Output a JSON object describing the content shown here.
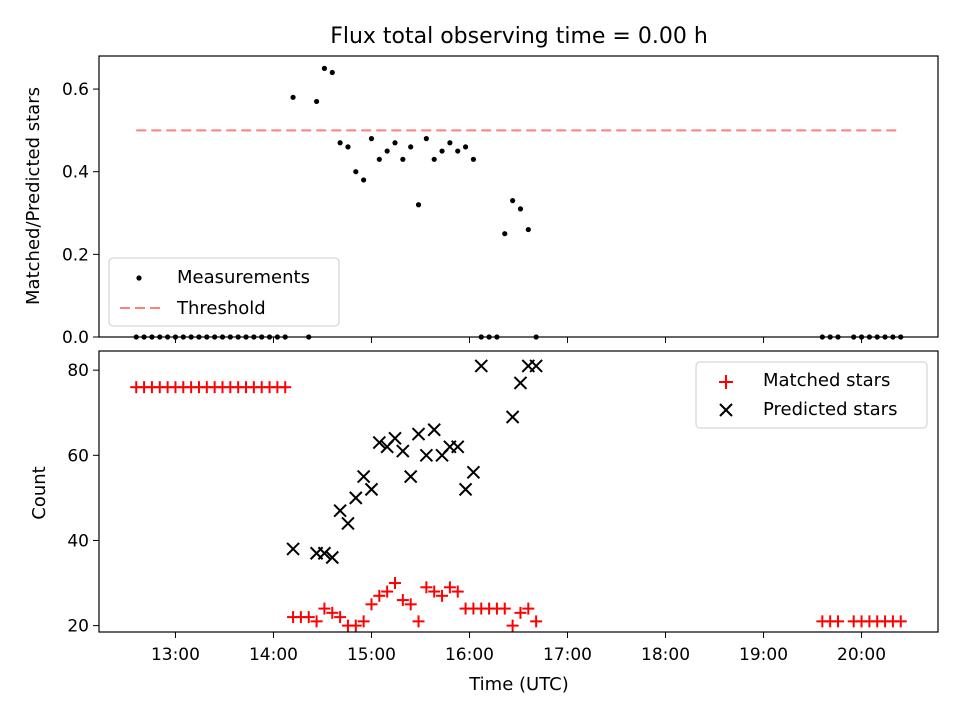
{
  "title": "Flux total observing time = 0.00 h",
  "colors": {
    "measurement": "#000000",
    "threshold": "#ff7f7f",
    "matched": "#ff0000",
    "predicted": "#000000"
  },
  "chart_data": [
    {
      "type": "scatter",
      "ylabel": "Matched/Predicted stars",
      "xlim": [
        12.22,
        20.78
      ],
      "ylim": [
        0.0,
        0.68
      ],
      "yticks": [
        "0.0",
        "0.2",
        "0.4",
        "0.6"
      ],
      "ytick_values": [
        0.0,
        0.2,
        0.4,
        0.6
      ],
      "legend": {
        "position": "lower-left",
        "entries": [
          "Measurements",
          "Threshold"
        ]
      },
      "threshold": {
        "name": "Threshold",
        "value": 0.5,
        "x_range": [
          12.6,
          20.4
        ]
      },
      "series": [
        {
          "name": "Measurements",
          "x": [
            12.6,
            12.68,
            12.76,
            12.84,
            12.92,
            13.0,
            13.08,
            13.16,
            13.24,
            13.32,
            13.4,
            13.48,
            13.56,
            13.64,
            13.72,
            13.8,
            13.88,
            13.96,
            14.04,
            14.12,
            14.2,
            14.36,
            14.44,
            14.52,
            14.6,
            14.68,
            14.76,
            14.84,
            14.92,
            15.0,
            15.08,
            15.16,
            15.24,
            15.32,
            15.4,
            15.48,
            15.56,
            15.64,
            15.72,
            15.8,
            15.88,
            15.96,
            16.04,
            16.12,
            16.2,
            16.28,
            16.36,
            16.44,
            16.52,
            16.6,
            16.68,
            19.6,
            19.68,
            19.76,
            19.92,
            20.0,
            20.08,
            20.16,
            20.24,
            20.32,
            20.4
          ],
          "y": [
            0,
            0,
            0,
            0,
            0,
            0,
            0,
            0,
            0,
            0,
            0,
            0,
            0,
            0,
            0,
            0,
            0,
            0,
            0,
            0,
            0.58,
            0,
            0.57,
            0.65,
            0.64,
            0.47,
            0.46,
            0.4,
            0.38,
            0.48,
            0.43,
            0.45,
            0.47,
            0.43,
            0.46,
            0.32,
            0.48,
            0.43,
            0.45,
            0.47,
            0.45,
            0.46,
            0.43,
            0,
            0,
            0,
            0.25,
            0.33,
            0.31,
            0.26,
            0,
            0,
            0,
            0,
            0,
            0,
            0,
            0,
            0,
            0,
            0
          ]
        }
      ]
    },
    {
      "type": "scatter",
      "xlabel": "Time (UTC)",
      "ylabel": "Count",
      "xlim": [
        12.22,
        20.78
      ],
      "ylim": [
        18.5,
        84.5
      ],
      "yticks": [
        "20",
        "40",
        "60",
        "80"
      ],
      "ytick_values": [
        20,
        40,
        60,
        80
      ],
      "xticks": [
        "13:00",
        "14:00",
        "15:00",
        "16:00",
        "17:00",
        "18:00",
        "19:00",
        "20:00"
      ],
      "xtick_values": [
        13,
        14,
        15,
        16,
        17,
        18,
        19,
        20
      ],
      "legend": {
        "position": "top-right",
        "entries": [
          "Matched stars",
          "Predicted stars"
        ]
      },
      "series": [
        {
          "name": "Matched stars",
          "x": [
            12.6,
            12.68,
            12.76,
            12.84,
            12.92,
            13.0,
            13.08,
            13.16,
            13.24,
            13.32,
            13.4,
            13.48,
            13.56,
            13.64,
            13.72,
            13.8,
            13.88,
            13.96,
            14.04,
            14.12,
            14.2,
            14.28,
            14.36,
            14.44,
            14.52,
            14.6,
            14.68,
            14.76,
            14.84,
            14.92,
            15.0,
            15.08,
            15.16,
            15.24,
            15.32,
            15.4,
            15.48,
            15.56,
            15.64,
            15.72,
            15.8,
            15.88,
            15.96,
            16.04,
            16.12,
            16.2,
            16.28,
            16.36,
            16.44,
            16.52,
            16.6,
            16.68,
            19.6,
            19.68,
            19.76,
            19.92,
            20.0,
            20.08,
            20.16,
            20.24,
            20.32,
            20.4
          ],
          "y": [
            76,
            76,
            76,
            76,
            76,
            76,
            76,
            76,
            76,
            76,
            76,
            76,
            76,
            76,
            76,
            76,
            76,
            76,
            76,
            76,
            22,
            22,
            22,
            21,
            24,
            23,
            22,
            20,
            20,
            21,
            25,
            27,
            28,
            30,
            26,
            25,
            21,
            29,
            28,
            27,
            29,
            28,
            24,
            24,
            24,
            24,
            24,
            24,
            20,
            23,
            24,
            21,
            21,
            21,
            21,
            21,
            21,
            21,
            21,
            21,
            21,
            21
          ]
        },
        {
          "name": "Predicted stars",
          "x": [
            14.2,
            14.44,
            14.52,
            14.6,
            14.68,
            14.76,
            14.84,
            14.92,
            15.0,
            15.08,
            15.16,
            15.24,
            15.32,
            15.4,
            15.48,
            15.56,
            15.64,
            15.72,
            15.8,
            15.88,
            15.96,
            16.04,
            16.12,
            16.44,
            16.52,
            16.6,
            16.68
          ],
          "y": [
            38,
            37,
            37,
            36,
            47,
            44,
            50,
            55,
            52,
            63,
            62,
            64,
            61,
            55,
            65,
            60,
            66,
            60,
            62,
            62,
            52,
            56,
            81,
            69,
            77,
            81,
            81
          ]
        }
      ]
    }
  ]
}
